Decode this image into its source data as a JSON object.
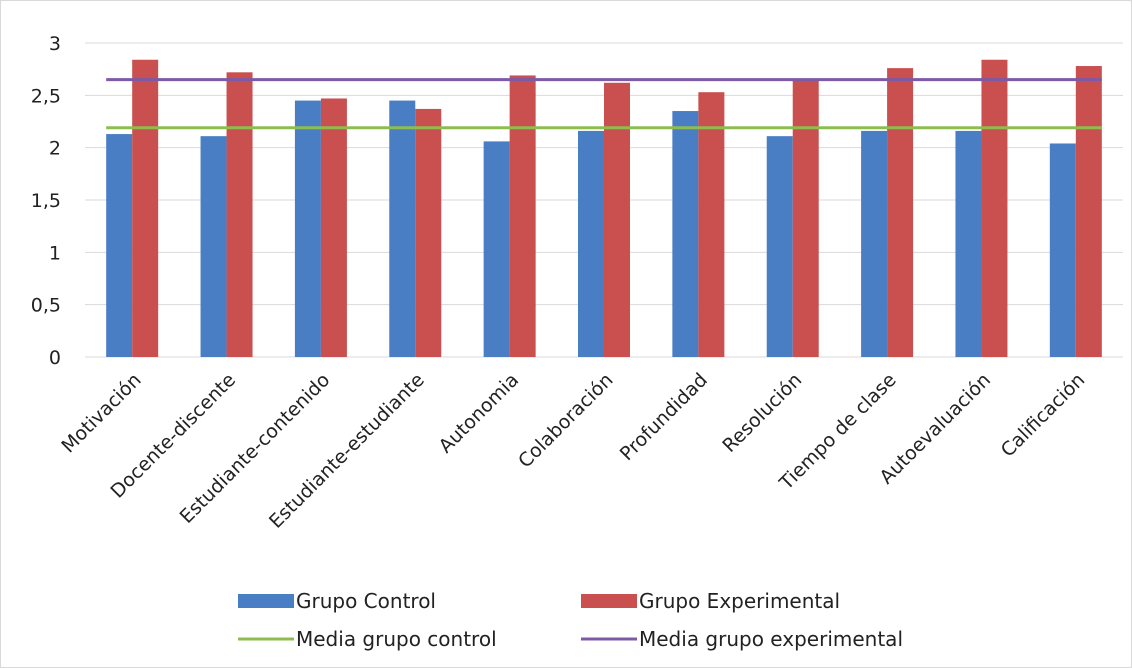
{
  "chart_data": {
    "type": "bar",
    "title": "",
    "xlabel": "",
    "ylabel": "",
    "ylim": [
      0,
      3
    ],
    "yticks": [
      "0",
      "0,5",
      "1",
      "1,5",
      "2",
      "2,5",
      "3"
    ],
    "grid": true,
    "legend_position": "bottom",
    "categories": [
      "Motivación",
      "Docente-discente",
      "Estudiante-contenido",
      "Estudiante-estudiante",
      "Autonomia",
      "Colaboración",
      "Profundidad",
      "Resolución",
      "Tiempo de clase",
      "Autoevaluación",
      "Calificación"
    ],
    "series": [
      {
        "name": "Grupo Control",
        "type": "bar",
        "color": "#4a7ec4",
        "values": [
          2.13,
          2.11,
          2.45,
          2.45,
          2.06,
          2.16,
          2.35,
          2.11,
          2.16,
          2.16,
          2.04
        ]
      },
      {
        "name": "Grupo Experimental",
        "type": "bar",
        "color": "#c9504f",
        "values": [
          2.84,
          2.72,
          2.47,
          2.37,
          2.69,
          2.62,
          2.53,
          2.66,
          2.76,
          2.84,
          2.78
        ]
      },
      {
        "name": "Media grupo control",
        "type": "line",
        "color": "#8ebd4f",
        "value": 2.19
      },
      {
        "name": "Media grupo experimental",
        "type": "line",
        "color": "#7d5aa6",
        "value": 2.65
      }
    ],
    "gridline_color": "#d9d9d9"
  }
}
